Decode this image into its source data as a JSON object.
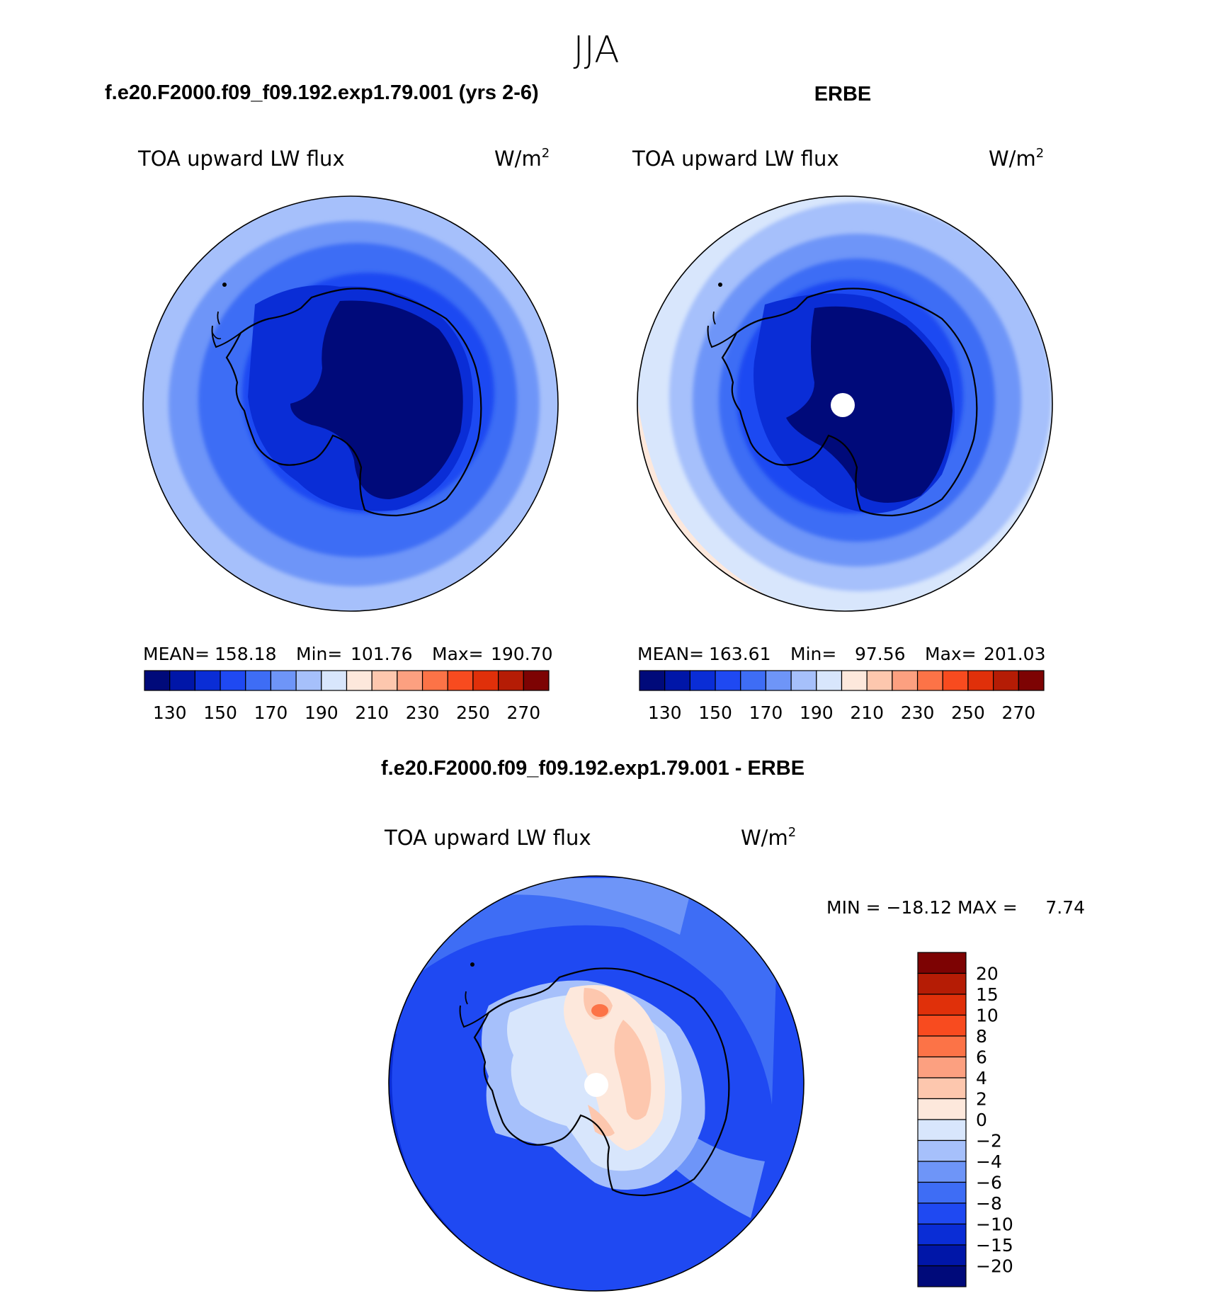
{
  "page_title": "JJA",
  "panels": [
    {
      "id": "model",
      "case_title": "f.e20.F2000.f09_f09.192.exp1.79.001 (yrs 2-6)",
      "variable": "TOA upward LW flux",
      "units_base": "W/m",
      "units_exp": "2",
      "stats": {
        "mean_label": "MEAN=",
        "mean": "158.18",
        "min_label": "Min=",
        "min": "101.76",
        "max_label": "Max=",
        "max": "190.70"
      }
    },
    {
      "id": "obs",
      "case_title": "ERBE",
      "variable": "TOA upward LW flux",
      "units_base": "W/m",
      "units_exp": "2",
      "stats": {
        "mean_label": "MEAN=",
        "mean": "163.61",
        "min_label": "Min=",
        "min": "97.56",
        "max_label": "Max=",
        "max": "201.03"
      }
    }
  ],
  "difference": {
    "title": "f.e20.F2000.f09_f09.192.exp1.79.001 - ERBE",
    "variable": "TOA upward LW flux",
    "units_base": "W/m",
    "units_exp": "2",
    "minmax": "MIN = −18.12 MAX =     7.74"
  },
  "colorbar_abs": {
    "colors": [
      "#000a7a",
      "#0016a8",
      "#0a2dd6",
      "#1f49f2",
      "#3e6df5",
      "#6e95f8",
      "#a6c0fb",
      "#d8e6fc",
      "#fde8dc",
      "#fdc7ae",
      "#fca080",
      "#fc7347",
      "#f84b1f",
      "#e0300a",
      "#b51c05",
      "#7d0303"
    ],
    "tick_labels": [
      "130",
      "150",
      "170",
      "190",
      "210",
      "230",
      "250",
      "270"
    ]
  },
  "colorbar_diff": {
    "colors": [
      "#000a7a",
      "#0016a8",
      "#0a2dd6",
      "#1f49f2",
      "#3e6df5",
      "#6e95f8",
      "#a6c0fb",
      "#d8e6fc",
      "#fde8dc",
      "#fdc7ae",
      "#fca080",
      "#fc7347",
      "#f84b1f",
      "#e0300a",
      "#b51c05",
      "#7d0303"
    ],
    "tick_labels": [
      "20",
      "15",
      "10",
      "8",
      "6",
      "4",
      "2",
      "0",
      "−2",
      "−4",
      "−6",
      "−8",
      "−10",
      "−15",
      "−20"
    ]
  },
  "colors": {
    "coast": "#000000",
    "pole_mask": "#ffffff"
  }
}
